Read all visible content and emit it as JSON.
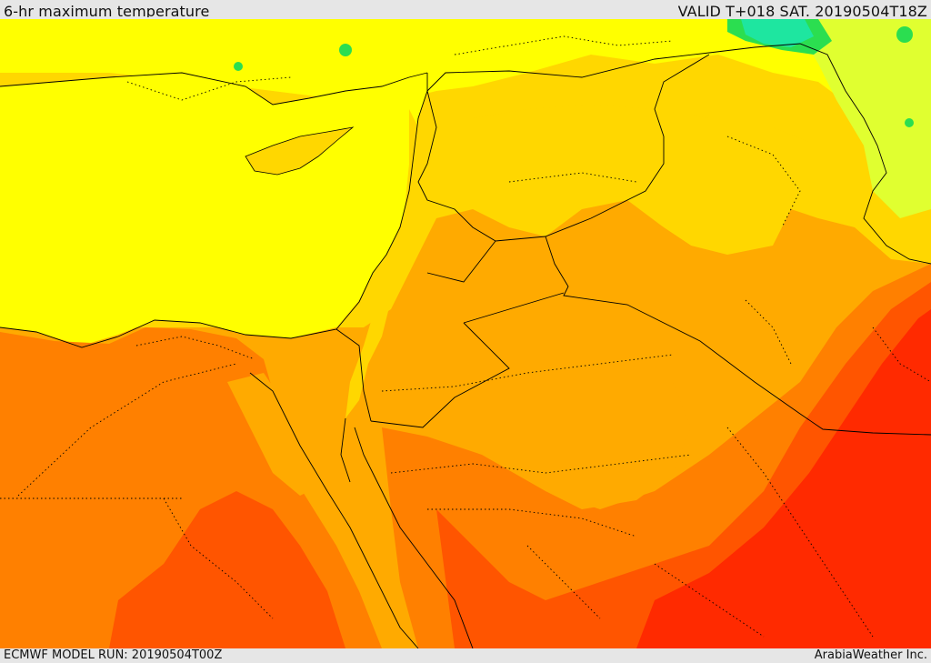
{
  "header": {
    "title": "6-hr maximum temperature",
    "valid": "VALID T+018 SAT. 20190504T18Z"
  },
  "footer": {
    "model_run": "ECMWF MODEL RUN: 20190504T00Z",
    "credit": "ArabiaWeather Inc."
  },
  "map": {
    "palette": {
      "sea_yellow": "#ffff00",
      "light_orange": "#ffd700",
      "orange": "#ffaa00",
      "dark_orange": "#ff8000",
      "red_orange": "#ff5500",
      "red": "#ff2a00",
      "green": "#2bde50",
      "teal": "#1ee6a0",
      "yellow_green": "#e0ff30"
    }
  }
}
